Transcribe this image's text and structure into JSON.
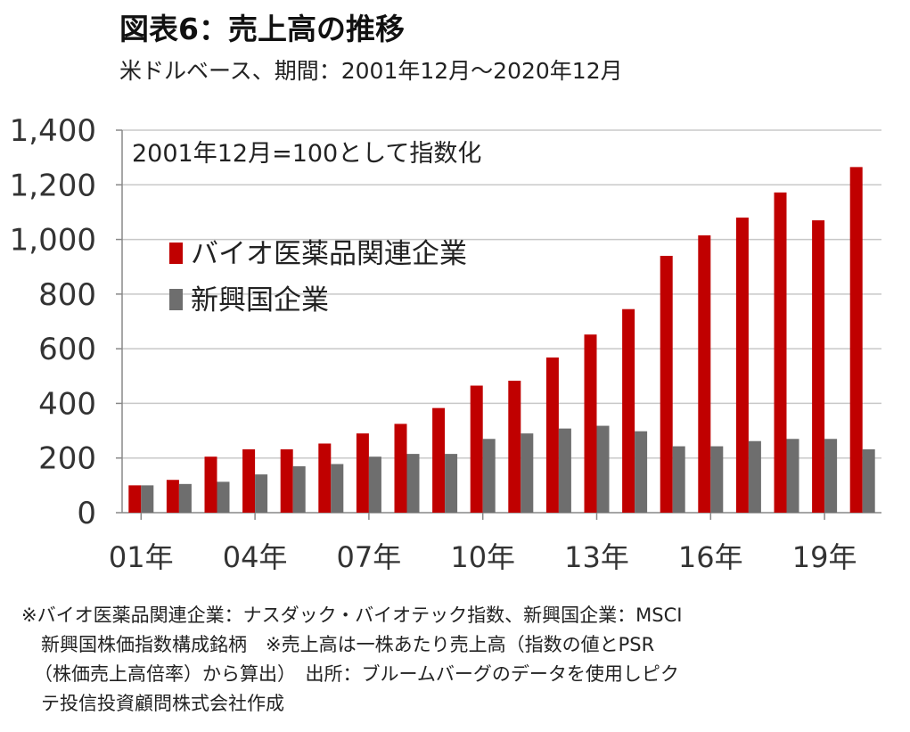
{
  "title": "図表6：売上高の推移",
  "subtitle": "米ドルベース、期間：2001年12月～2020年12月",
  "chart_data": {
    "type": "bar",
    "annotation": "2001年12月=100として指数化",
    "categories": [
      "01年",
      "02年",
      "03年",
      "04年",
      "05年",
      "06年",
      "07年",
      "08年",
      "09年",
      "10年",
      "11年",
      "12年",
      "13年",
      "14年",
      "15年",
      "16年",
      "17年",
      "18年",
      "19年",
      "20年"
    ],
    "x_tick_labels": [
      "01年",
      "04年",
      "07年",
      "10年",
      "13年",
      "16年",
      "19年"
    ],
    "series": [
      {
        "name": "バイオ医薬品関連企業",
        "color": "#c00000",
        "values": [
          100,
          120,
          205,
          232,
          232,
          253,
          290,
          325,
          383,
          465,
          483,
          568,
          652,
          745,
          940,
          1015,
          1080,
          1172,
          1070,
          1265
        ]
      },
      {
        "name": "新興国企業",
        "color": "#6e6e6e",
        "values": [
          100,
          105,
          113,
          140,
          170,
          178,
          205,
          215,
          215,
          270,
          290,
          308,
          318,
          298,
          243,
          243,
          262,
          270,
          270,
          232
        ]
      }
    ],
    "ylim": [
      0,
      1400
    ],
    "y_ticks": [
      0,
      200,
      400,
      600,
      800,
      1000,
      1200,
      1400
    ],
    "y_tick_labels": [
      "0",
      "200",
      "400",
      "600",
      "800",
      "1,000",
      "1,200",
      "1,400"
    ],
    "grid": true,
    "legend_position": "top-left"
  },
  "footnote": [
    "※バイオ医薬品関連企業：ナスダック・バイオテック指数、新興国企業：MSCI",
    "新興国株価指数構成銘柄　※売上高は一株あたり売上高（指数の値とPSR",
    "（株価売上高倍率）から算出）　出所：ブルームバーグのデータを使用しピク",
    "テ投信投資顧問株式会社作成"
  ]
}
